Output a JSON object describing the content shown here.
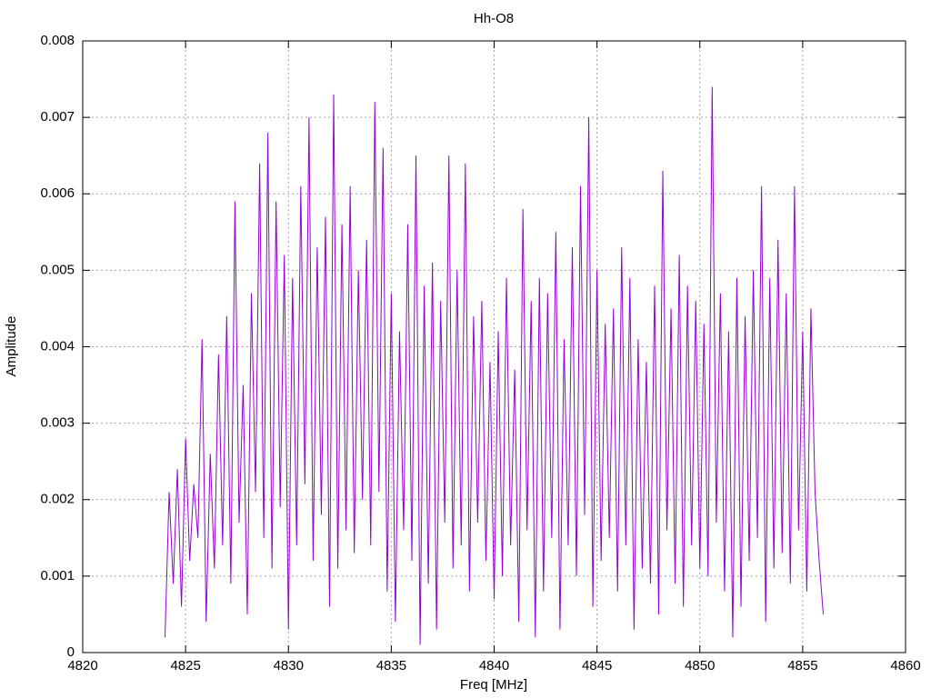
{
  "chart_data": {
    "type": "line",
    "title": "Hh-O8",
    "x_label": "Freq [MHz]",
    "y_label": "Amplitude",
    "color": "#9400d3",
    "grid": true,
    "xlim": [
      4820,
      4860
    ],
    "xticks": [
      4820,
      4825,
      4830,
      4835,
      4840,
      4845,
      4850,
      4855,
      4860
    ],
    "ylim": [
      0,
      0.008
    ],
    "yticks": [
      0,
      0.001,
      0.002,
      0.003,
      0.004,
      0.005,
      0.006,
      0.007,
      0.008
    ],
    "x": [
      4824,
      4824.2,
      4824.4,
      4824.6,
      4824.8,
      4825,
      4825.2,
      4825.4,
      4825.6,
      4825.8,
      4826,
      4826.2,
      4826.4,
      4826.6,
      4826.8,
      4827,
      4827.2,
      4827.4,
      4827.6,
      4827.8,
      4828,
      4828.2,
      4828.4,
      4828.6,
      4828.8,
      4829,
      4829.2,
      4829.4,
      4829.6,
      4829.8,
      4830,
      4830.2,
      4830.4,
      4830.6,
      4830.8,
      4831,
      4831.2,
      4831.4,
      4831.6,
      4831.8,
      4832,
      4832.2,
      4832.4,
      4832.6,
      4832.8,
      4833,
      4833.2,
      4833.4,
      4833.6,
      4833.8,
      4834,
      4834.2,
      4834.4,
      4834.6,
      4834.8,
      4835,
      4835.2,
      4835.4,
      4835.6,
      4835.8,
      4836,
      4836.2,
      4836.4,
      4836.6,
      4836.8,
      4837,
      4837.2,
      4837.4,
      4837.6,
      4837.8,
      4838,
      4838.2,
      4838.4,
      4838.6,
      4838.8,
      4839,
      4839.2,
      4839.4,
      4839.6,
      4839.8,
      4840,
      4840.2,
      4840.4,
      4840.6,
      4840.8,
      4841,
      4841.2,
      4841.4,
      4841.6,
      4841.8,
      4842,
      4842.2,
      4842.4,
      4842.6,
      4842.8,
      4843,
      4843.2,
      4843.4,
      4843.6,
      4843.8,
      4844,
      4844.2,
      4844.4,
      4844.6,
      4844.8,
      4845,
      4845.2,
      4845.4,
      4845.6,
      4845.8,
      4846,
      4846.2,
      4846.4,
      4846.6,
      4846.8,
      4847,
      4847.2,
      4847.4,
      4847.6,
      4847.8,
      4848,
      4848.2,
      4848.4,
      4848.6,
      4848.8,
      4849,
      4849.2,
      4849.4,
      4849.6,
      4849.8,
      4850,
      4850.2,
      4850.4,
      4850.6,
      4850.8,
      4851,
      4851.2,
      4851.4,
      4851.6,
      4851.8,
      4852,
      4852.2,
      4852.4,
      4852.6,
      4852.8,
      4853,
      4853.2,
      4853.4,
      4853.6,
      4853.8,
      4854,
      4854.2,
      4854.4,
      4854.6,
      4854.8,
      4855,
      4855.2,
      4855.4,
      4855.6,
      4855.8,
      4856
    ],
    "values": [
      0.0002,
      0.0021,
      0.0009,
      0.0024,
      0.0006,
      0.0028,
      0.0012,
      0.0022,
      0.0015,
      0.0041,
      0.0004,
      0.0026,
      0.0011,
      0.0039,
      0.0014,
      0.0044,
      0.0009,
      0.0059,
      0.0017,
      0.0035,
      0.0005,
      0.0047,
      0.0021,
      0.0064,
      0.0015,
      0.0068,
      0.0011,
      0.0059,
      0.0019,
      0.0052,
      0.0003,
      0.0049,
      0.0014,
      0.0061,
      0.0022,
      0.007,
      0.0012,
      0.0053,
      0.0018,
      0.0057,
      0.0006,
      0.0073,
      0.0011,
      0.0056,
      0.0016,
      0.0061,
      0.0013,
      0.005,
      0.002,
      0.0054,
      0.0014,
      0.0072,
      0.0021,
      0.0066,
      0.0008,
      0.0047,
      0.0004,
      0.0042,
      0.0016,
      0.0056,
      0.0012,
      0.0065,
      0.0001,
      0.0048,
      0.0009,
      0.0051,
      0.0003,
      0.0046,
      0.0017,
      0.0065,
      0.0011,
      0.005,
      0.0014,
      0.0064,
      0.0008,
      0.0044,
      0.0017,
      0.0046,
      0.0012,
      0.0038,
      0.0007,
      0.0042,
      0.001,
      0.0049,
      0.0014,
      0.0037,
      0.0004,
      0.0058,
      0.0016,
      0.0046,
      0.0002,
      0.0049,
      0.0008,
      0.0047,
      0.0015,
      0.0055,
      0.0003,
      0.0041,
      0.0014,
      0.0053,
      0.001,
      0.0061,
      0.0018,
      0.007,
      0.0006,
      0.005,
      0.0012,
      0.0043,
      0.0015,
      0.0045,
      0.0008,
      0.0053,
      0.0014,
      0.0049,
      0.0003,
      0.0041,
      0.0011,
      0.0038,
      0.0009,
      0.0048,
      0.0005,
      0.0063,
      0.0016,
      0.0045,
      0.0009,
      0.0052,
      0.0006,
      0.0048,
      0.0014,
      0.0046,
      0.0011,
      0.0043,
      0.001,
      0.0074,
      0.0017,
      0.0047,
      0.0008,
      0.0042,
      0.0002,
      0.0049,
      0.0006,
      0.0044,
      0.0012,
      0.005,
      0.0015,
      0.0061,
      0.0004,
      0.0049,
      0.0011,
      0.0054,
      0.0013,
      0.0047,
      0.0009,
      0.0061,
      0.0016,
      0.0042,
      0.0008,
      0.0045,
      0.0021,
      0.0012,
      0.0005
    ]
  }
}
